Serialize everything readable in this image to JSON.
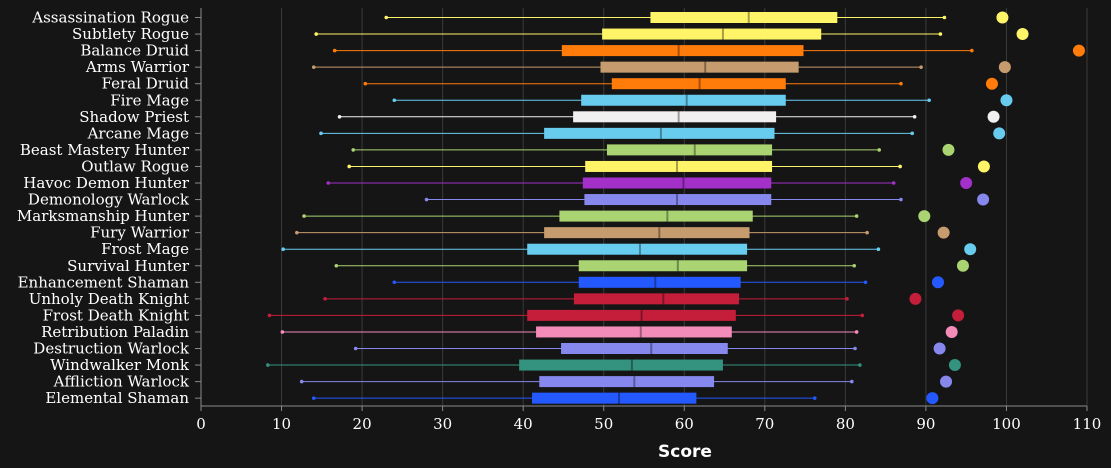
{
  "chart_data": {
    "type": "boxplot",
    "xlabel": "Score",
    "xlim": [
      0,
      110
    ],
    "xticks": [
      0,
      10,
      20,
      30,
      40,
      50,
      60,
      70,
      80,
      90,
      100,
      110
    ],
    "grid": true,
    "series": [
      {
        "name": "Assassination Rogue",
        "color": "#fff468",
        "min": 23.0,
        "q1": 55.8,
        "median": 68.0,
        "q3": 79.0,
        "max": 92.3,
        "outlier": 99.5
      },
      {
        "name": "Subtlety Rogue",
        "color": "#fff468",
        "min": 14.3,
        "q1": 49.8,
        "median": 64.8,
        "q3": 77.0,
        "max": 91.8,
        "outlier": 102.0
      },
      {
        "name": "Balance Druid",
        "color": "#ff7c0a",
        "min": 16.6,
        "q1": 44.8,
        "median": 59.3,
        "q3": 74.8,
        "max": 95.7,
        "outlier": 109.0
      },
      {
        "name": "Arms Warrior",
        "color": "#c69b6d",
        "min": 14.0,
        "q1": 49.6,
        "median": 62.6,
        "q3": 74.2,
        "max": 89.4,
        "outlier": 99.8
      },
      {
        "name": "Feral Druid",
        "color": "#ff7c0a",
        "min": 20.4,
        "q1": 51.0,
        "median": 61.9,
        "q3": 72.6,
        "max": 86.9,
        "outlier": 98.2
      },
      {
        "name": "Fire Mage",
        "color": "#68ccef",
        "min": 24.0,
        "q1": 47.2,
        "median": 60.3,
        "q3": 72.6,
        "max": 90.4,
        "outlier": 100.0
      },
      {
        "name": "Shadow Priest",
        "color": "#f0f0f0",
        "min": 17.2,
        "q1": 46.2,
        "median": 59.3,
        "q3": 71.4,
        "max": 88.6,
        "outlier": 98.4
      },
      {
        "name": "Arcane Mage",
        "color": "#68ccef",
        "min": 14.9,
        "q1": 42.6,
        "median": 57.1,
        "q3": 71.2,
        "max": 88.3,
        "outlier": 99.1
      },
      {
        "name": "Beast Mastery Hunter",
        "color": "#aad372",
        "min": 18.9,
        "q1": 50.4,
        "median": 61.3,
        "q3": 70.9,
        "max": 84.2,
        "outlier": 92.8
      },
      {
        "name": "Outlaw Rogue",
        "color": "#fff468",
        "min": 18.4,
        "q1": 47.7,
        "median": 59.1,
        "q3": 70.9,
        "max": 86.8,
        "outlier": 97.2
      },
      {
        "name": "Havoc Demon Hunter",
        "color": "#a330c9",
        "min": 15.8,
        "q1": 47.4,
        "median": 59.9,
        "q3": 70.8,
        "max": 86.0,
        "outlier": 95.0
      },
      {
        "name": "Demonology Warlock",
        "color": "#8788ee",
        "min": 28.0,
        "q1": 47.6,
        "median": 59.1,
        "q3": 70.8,
        "max": 86.9,
        "outlier": 97.1
      },
      {
        "name": "Marksmanship Hunter",
        "color": "#aad372",
        "min": 12.8,
        "q1": 44.5,
        "median": 57.9,
        "q3": 68.5,
        "max": 81.4,
        "outlier": 89.8
      },
      {
        "name": "Fury Warrior",
        "color": "#c69b6d",
        "min": 11.9,
        "q1": 42.6,
        "median": 56.9,
        "q3": 68.1,
        "max": 82.7,
        "outlier": 92.2
      },
      {
        "name": "Frost Mage",
        "color": "#68ccef",
        "min": 10.2,
        "q1": 40.5,
        "median": 54.5,
        "q3": 67.8,
        "max": 84.1,
        "outlier": 95.5
      },
      {
        "name": "Survival Hunter",
        "color": "#aad372",
        "min": 16.8,
        "q1": 46.9,
        "median": 59.2,
        "q3": 67.8,
        "max": 81.1,
        "outlier": 94.6
      },
      {
        "name": "Enhancement Shaman",
        "color": "#2459ff",
        "min": 24.0,
        "q1": 46.9,
        "median": 56.4,
        "q3": 67.0,
        "max": 82.5,
        "outlier": 91.5
      },
      {
        "name": "Unholy Death Knight",
        "color": "#c41e3a",
        "min": 15.4,
        "q1": 46.3,
        "median": 57.4,
        "q3": 66.8,
        "max": 80.2,
        "outlier": 88.7
      },
      {
        "name": "Frost Death Knight",
        "color": "#c41e3a",
        "min": 8.5,
        "q1": 40.5,
        "median": 54.7,
        "q3": 66.4,
        "max": 82.1,
        "outlier": 94.0
      },
      {
        "name": "Retribution Paladin",
        "color": "#f48cba",
        "min": 10.1,
        "q1": 41.6,
        "median": 54.6,
        "q3": 65.9,
        "max": 81.4,
        "outlier": 93.2
      },
      {
        "name": "Destruction Warlock",
        "color": "#8788ee",
        "min": 19.2,
        "q1": 44.7,
        "median": 55.9,
        "q3": 65.4,
        "max": 81.2,
        "outlier": 91.7
      },
      {
        "name": "Windwalker Monk",
        "color": "#33937f",
        "min": 8.3,
        "q1": 39.5,
        "median": 53.5,
        "q3": 64.8,
        "max": 81.8,
        "outlier": 93.6
      },
      {
        "name": "Affliction Warlock",
        "color": "#8788ee",
        "min": 12.5,
        "q1": 42.0,
        "median": 53.8,
        "q3": 63.7,
        "max": 80.8,
        "outlier": 92.5
      },
      {
        "name": "Elemental Shaman",
        "color": "#2459ff",
        "min": 14.0,
        "q1": 41.1,
        "median": 51.9,
        "q3": 61.5,
        "max": 76.2,
        "outlier": 90.8
      }
    ]
  },
  "colors": {
    "background": "#151515",
    "grid": "#3a3a3a",
    "axis": "#8a8a8a",
    "text": "#ffffff"
  }
}
